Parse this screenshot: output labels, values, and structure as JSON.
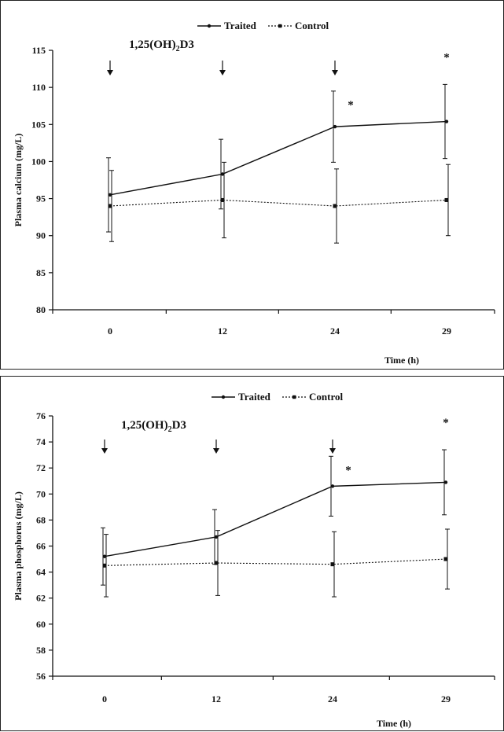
{
  "chart_data": [
    {
      "type": "line",
      "ylabel": "Plasma calcium (mg/L)",
      "xlabel": "Time (h)",
      "categories": [
        "0",
        "12",
        "24",
        "29"
      ],
      "ylim": [
        80,
        115
      ],
      "yticks": [
        80,
        85,
        90,
        95,
        100,
        105,
        110,
        115
      ],
      "legend_position": "top-center",
      "grid": false,
      "series": [
        {
          "name": "Traited",
          "style": "solid",
          "color": "#111111",
          "values": [
            95.5,
            98.3,
            104.7,
            105.4
          ],
          "error": [
            5.0,
            4.7,
            4.8,
            5.0
          ]
        },
        {
          "name": "Control",
          "style": "dotted",
          "color": "#111111",
          "values": [
            94.0,
            94.8,
            94.0,
            94.8
          ],
          "error": [
            4.8,
            5.1,
            5.0,
            4.8
          ]
        }
      ],
      "annotation": {
        "prefix": "1,25(OH)",
        "subscript": "2",
        "suffix": "D3"
      },
      "arrow_at": [
        "0",
        "12",
        "24"
      ],
      "significance": {
        "marker": "*",
        "at": [
          "24",
          "29"
        ]
      }
    },
    {
      "type": "line",
      "ylabel": "Plasma phosphorus (mg/L)",
      "xlabel": "Time (h)",
      "categories": [
        "0",
        "12",
        "24",
        "29"
      ],
      "ylim": [
        56,
        76
      ],
      "yticks": [
        56,
        58,
        60,
        62,
        64,
        66,
        68,
        70,
        72,
        74,
        76
      ],
      "legend_position": "top-center",
      "grid": false,
      "series": [
        {
          "name": "Traited",
          "style": "solid",
          "color": "#111111",
          "values": [
            65.2,
            66.7,
            70.6,
            70.9
          ],
          "error": [
            2.2,
            2.1,
            2.3,
            2.5
          ]
        },
        {
          "name": "Control",
          "style": "dotted",
          "color": "#111111",
          "values": [
            64.5,
            64.7,
            64.6,
            65.0
          ],
          "error": [
            2.4,
            2.5,
            2.5,
            2.3
          ]
        }
      ],
      "annotation": {
        "prefix": "1,25(OH)",
        "subscript": "2",
        "suffix": "D3"
      },
      "arrow_at": [
        "0",
        "12",
        "24"
      ],
      "significance": {
        "marker": "*",
        "at": [
          "24",
          "29"
        ]
      }
    }
  ]
}
